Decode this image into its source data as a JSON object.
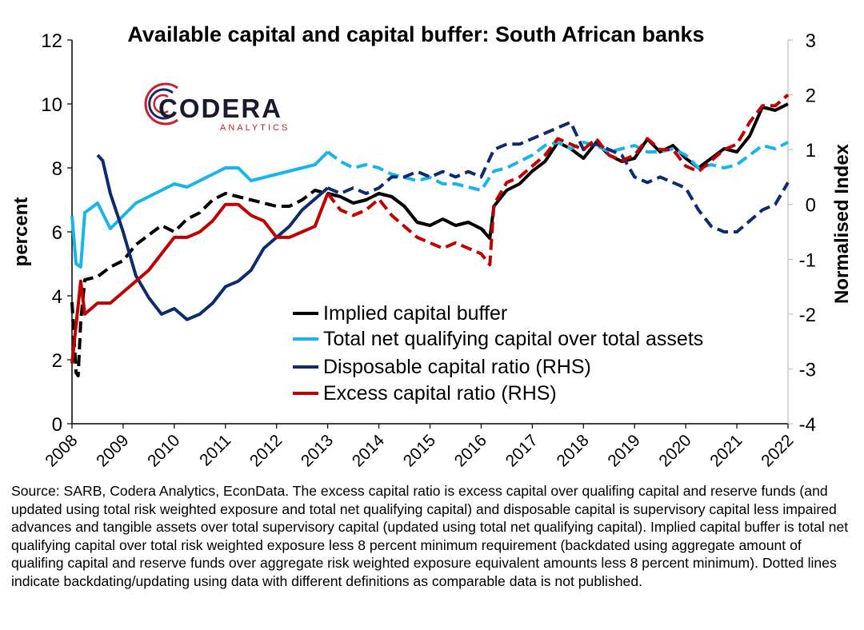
{
  "chart_data": {
    "type": "line",
    "title": "Available capital and capital buffer: South African banks",
    "ylabel_left": "percent",
    "ylabel_right": "Normalised Index",
    "ylim_left": [
      0,
      12
    ],
    "ylim_right": [
      -4,
      3
    ],
    "yticks_left": [
      "0",
      "2",
      "4",
      "6",
      "8",
      "10",
      "12"
    ],
    "yticks_right": [
      "-4",
      "-3",
      "-2",
      "-1",
      "0",
      "1",
      "2",
      "3"
    ],
    "xlim": [
      2008,
      2022
    ],
    "xticks": [
      "2008",
      "2009",
      "2010",
      "2011",
      "2012",
      "2013",
      "2014",
      "2015",
      "2016",
      "2017",
      "2018",
      "2019",
      "2020",
      "2021",
      "2022"
    ],
    "grid": false,
    "legend_position": "center",
    "legend": [
      "Implied capital buffer",
      "Total net qualifying capital over total assets",
      "Disposable capital ratio (RHS)",
      "Excess capital ratio (RHS)"
    ],
    "series": [
      {
        "name": "Implied capital buffer",
        "axis": "left",
        "color": "#000000",
        "segments": [
          {
            "style": "dashed",
            "x": [
              2008.0,
              2008.08,
              2008.12,
              2008.17,
              2008.25,
              2008.5,
              2008.75,
              2009.0,
              2009.25,
              2009.5,
              2009.75,
              2010.0,
              2010.25,
              2010.5,
              2010.75,
              2011.0,
              2011.25,
              2011.5,
              2011.75,
              2012.0,
              2012.25,
              2012.5,
              2012.75,
              2013.0,
              2013.25,
              2013.5,
              2013.75,
              2014.0,
              2014.25,
              2014.5,
              2014.75,
              2015.0,
              2015.25,
              2015.5,
              2015.75,
              2016.0,
              2016.08
            ],
            "y": [
              3.8,
              1.6,
              1.5,
              3.2,
              4.5,
              4.6,
              4.9,
              5.1,
              5.6,
              5.9,
              6.2,
              6.0,
              6.4,
              6.6,
              7.0,
              7.2,
              7.1,
              7.0,
              6.9,
              6.8,
              6.8,
              7.0,
              7.3,
              7.2,
              7.1,
              6.9,
              7.0,
              7.2,
              7.1,
              6.8,
              6.3,
              6.2,
              6.4,
              6.2,
              6.3,
              6.1,
              6.0
            ]
          },
          {
            "style": "solid",
            "x": [
              2013.0,
              2013.25,
              2013.5,
              2013.75,
              2014.0,
              2014.25,
              2014.5,
              2014.75,
              2015.0,
              2015.25,
              2015.5,
              2015.75,
              2016.0,
              2016.17,
              2016.25,
              2016.5,
              2016.75,
              2017.0,
              2017.25,
              2017.5,
              2017.75,
              2018.0,
              2018.25,
              2018.5,
              2018.75,
              2019.0,
              2019.25,
              2019.5,
              2019.75,
              2020.0,
              2020.25,
              2020.5,
              2020.75,
              2021.0,
              2021.25,
              2021.5,
              2021.75,
              2022.0
            ],
            "y": [
              7.2,
              7.1,
              6.9,
              7.0,
              7.2,
              7.1,
              6.8,
              6.3,
              6.2,
              6.4,
              6.2,
              6.3,
              6.1,
              5.8,
              6.8,
              7.3,
              7.5,
              7.9,
              8.2,
              8.8,
              8.6,
              8.3,
              8.8,
              8.4,
              8.2,
              8.3,
              8.9,
              8.5,
              8.7,
              8.3,
              8.0,
              8.3,
              8.6,
              8.5,
              9.0,
              9.9,
              9.8,
              10.0
            ]
          }
        ]
      },
      {
        "name": "Total net qualifying capital over total assets",
        "axis": "left",
        "color": "#1ab4ec",
        "segments": [
          {
            "style": "solid",
            "x": [
              2008.0,
              2008.08,
              2008.17,
              2008.25,
              2008.5,
              2008.75,
              2009.0,
              2009.25,
              2009.5,
              2009.75,
              2010.0,
              2010.25,
              2010.5,
              2010.75,
              2011.0,
              2011.25,
              2011.5,
              2011.75,
              2012.0,
              2012.25,
              2012.5,
              2012.75,
              2013.0
            ],
            "y": [
              6.5,
              5.0,
              4.9,
              6.6,
              6.9,
              6.1,
              6.5,
              6.9,
              7.1,
              7.3,
              7.5,
              7.4,
              7.6,
              7.8,
              8.0,
              8.0,
              7.6,
              7.7,
              7.8,
              7.9,
              8.0,
              8.1,
              8.5
            ]
          },
          {
            "style": "dashed",
            "x": [
              2013.0,
              2013.25,
              2013.5,
              2013.75,
              2014.0,
              2014.25,
              2014.5,
              2014.75,
              2015.0,
              2015.25,
              2015.5,
              2015.75,
              2016.0,
              2016.25,
              2016.5,
              2016.75,
              2017.0,
              2017.25,
              2017.5,
              2017.75,
              2018.0,
              2018.25,
              2018.5,
              2018.75,
              2019.0,
              2019.25,
              2019.5,
              2019.75,
              2020.0,
              2020.25,
              2020.5,
              2020.75,
              2021.0,
              2021.25,
              2021.5,
              2021.75,
              2022.0
            ],
            "y": [
              8.5,
              8.2,
              8.0,
              8.1,
              8.0,
              7.8,
              7.7,
              7.6,
              7.7,
              7.5,
              7.5,
              7.4,
              7.3,
              7.9,
              8.0,
              8.2,
              8.4,
              8.7,
              8.8,
              8.6,
              8.8,
              8.7,
              8.5,
              8.6,
              8.7,
              8.5,
              8.5,
              8.6,
              8.4,
              8.0,
              8.1,
              8.0,
              8.1,
              8.4,
              8.7,
              8.6,
              8.8
            ]
          }
        ]
      },
      {
        "name": "Disposable capital ratio (RHS)",
        "axis": "right",
        "color": "#0d2c6f",
        "segments": [
          {
            "style": "solid",
            "x": [
              2008.5,
              2008.6,
              2008.75,
              2009.0,
              2009.25,
              2009.5,
              2009.75,
              2010.0,
              2010.25,
              2010.5,
              2010.75,
              2011.0,
              2011.25,
              2011.5,
              2011.75,
              2012.0,
              2012.25,
              2012.5,
              2012.75,
              2013.0
            ],
            "y": [
              0.9,
              0.8,
              0.2,
              -0.5,
              -1.3,
              -1.7,
              -2.0,
              -1.9,
              -2.1,
              -2.0,
              -1.8,
              -1.5,
              -1.4,
              -1.2,
              -0.8,
              -0.6,
              -0.4,
              -0.1,
              0.1,
              0.3
            ]
          },
          {
            "style": "dashed",
            "x": [
              2013.0,
              2013.25,
              2013.5,
              2013.75,
              2014.0,
              2014.25,
              2014.5,
              2014.75,
              2015.0,
              2015.25,
              2015.5,
              2015.75,
              2016.0,
              2016.25,
              2016.5,
              2016.75,
              2017.0,
              2017.25,
              2017.5,
              2017.75,
              2018.0,
              2018.25,
              2018.5,
              2018.75,
              2019.0,
              2019.25,
              2019.5,
              2019.75,
              2020.0,
              2020.25,
              2020.5,
              2020.75,
              2021.0,
              2021.25,
              2021.5,
              2021.75,
              2022.0
            ],
            "y": [
              0.3,
              0.2,
              0.3,
              0.2,
              0.3,
              0.5,
              0.5,
              0.6,
              0.5,
              0.6,
              0.5,
              0.6,
              0.5,
              1.0,
              1.1,
              1.1,
              1.2,
              1.3,
              1.4,
              1.5,
              1.0,
              1.1,
              1.0,
              0.9,
              0.5,
              0.4,
              0.5,
              0.4,
              0.3,
              -0.1,
              -0.4,
              -0.5,
              -0.5,
              -0.3,
              -0.1,
              0.0,
              0.4
            ]
          }
        ]
      },
      {
        "name": "Excess capital ratio (RHS)",
        "axis": "right",
        "color": "#c00000",
        "segments": [
          {
            "style": "solid",
            "x": [
              2008.0,
              2008.08,
              2008.17,
              2008.25,
              2008.5,
              2008.75,
              2009.0,
              2009.25,
              2009.5,
              2009.75,
              2010.0,
              2010.25,
              2010.5,
              2010.75,
              2011.0,
              2011.25,
              2011.5,
              2011.75,
              2012.0,
              2012.25,
              2012.5,
              2012.75,
              2013.0
            ],
            "y": [
              -2.9,
              -2.2,
              -1.4,
              -2.0,
              -1.8,
              -1.8,
              -1.6,
              -1.4,
              -1.2,
              -0.9,
              -0.6,
              -0.6,
              -0.5,
              -0.3,
              0.0,
              0.0,
              -0.2,
              -0.3,
              -0.6,
              -0.6,
              -0.5,
              -0.4,
              0.2
            ]
          },
          {
            "style": "dashed",
            "x": [
              2013.0,
              2013.25,
              2013.5,
              2013.75,
              2014.0,
              2014.25,
              2014.5,
              2014.75,
              2015.0,
              2015.25,
              2015.5,
              2015.75,
              2016.0,
              2016.17,
              2016.25,
              2016.5,
              2016.75,
              2017.0,
              2017.25,
              2017.5,
              2017.75,
              2018.0,
              2018.25,
              2018.5,
              2018.75,
              2019.0,
              2019.25,
              2019.5,
              2019.75,
              2020.0,
              2020.25,
              2020.5,
              2020.75,
              2021.0,
              2021.25,
              2021.5,
              2021.75,
              2022.0
            ],
            "y": [
              0.2,
              -0.1,
              -0.2,
              -0.1,
              0.1,
              -0.2,
              -0.4,
              -0.6,
              -0.7,
              -0.8,
              -0.7,
              -0.8,
              -0.9,
              -1.1,
              0.0,
              0.4,
              0.5,
              0.7,
              0.9,
              1.2,
              1.1,
              1.0,
              1.2,
              0.9,
              0.8,
              0.9,
              1.2,
              1.0,
              1.0,
              0.7,
              0.6,
              0.8,
              1.0,
              1.1,
              1.5,
              1.8,
              1.8,
              2.0
            ]
          }
        ]
      }
    ]
  },
  "logo": {
    "name": "CODERA",
    "tagline": "ANALYTICS"
  },
  "source_note": "Source: SARB, Codera Analytics, EconData. The excess capital ratio is excess capital over qualifing capital and reserve funds (and updated using total risk weighted exposure and total net qualifying capital) and disposable capital is supervisory capital less impaired advances and tangible assets over total supervisory capital (updated using total net qualifying capital). Implied capital buffer is total net qualifying capital over total risk weighted exposure less 8 percent minimum requirement (backdated using aggregate amount of qualifing capital and reserve funds over aggregate risk weighted exposure equivalent amounts less 8 percent minimum). Dotted lines indicate backdating/updating using data with different definitions as comparable data is not published."
}
